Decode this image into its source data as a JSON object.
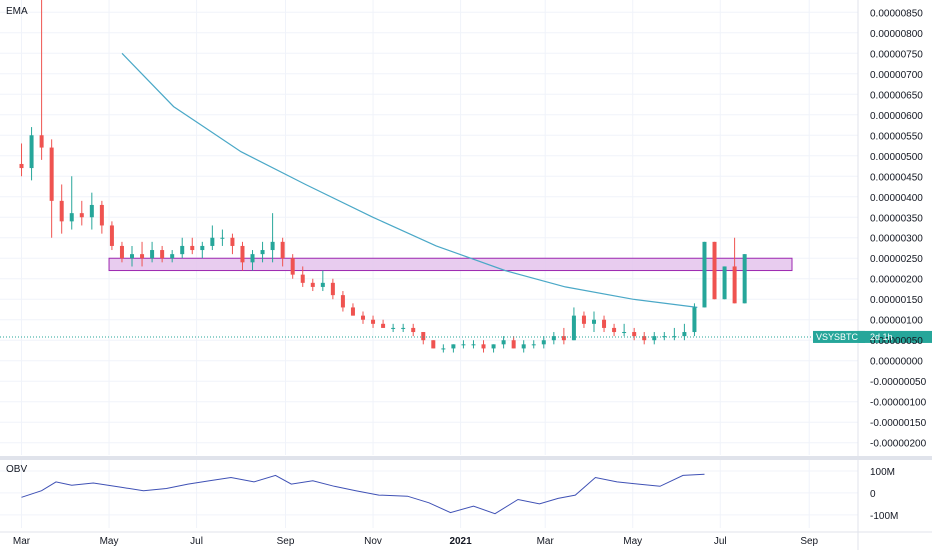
{
  "chart_data": {
    "type": "candlestick",
    "symbol": "VSYSBTC",
    "countdown": "2d 1h",
    "last_price": 5.8e-07,
    "colors": {
      "up": "#26a69a",
      "down": "#ef5350",
      "ema": "#4aa8c7",
      "zone_fill": "#e4c3ec",
      "zone_border": "#9c27b0",
      "obv": "#3f51b5",
      "label_bg": "#26a69a"
    },
    "main_pane": {
      "title": "EMA",
      "ylim": [
        -2.3e-06,
        8.8e-06
      ],
      "yticks": [
        "0.00000850",
        "0.00000800",
        "0.00000750",
        "0.00000700",
        "0.00000650",
        "0.00000600",
        "0.00000550",
        "0.00000500",
        "0.00000450",
        "0.00000400",
        "0.00000350",
        "0.00000300",
        "0.00000250",
        "0.00000200",
        "0.00000150",
        "0.00000100",
        "0.00000050",
        "0.00000000",
        "-0.00000050",
        "-0.00000100",
        "-0.00000150",
        "-0.00000200"
      ],
      "ytick_values": [
        8.5e-06,
        8e-06,
        7.5e-06,
        7e-06,
        6.5e-06,
        6e-06,
        5.5e-06,
        5e-06,
        4.5e-06,
        4e-06,
        3.5e-06,
        3e-06,
        2.5e-06,
        2e-06,
        1.5e-06,
        1e-06,
        5e-07,
        0,
        -5e-07,
        -1e-06,
        -1.5e-06,
        -2e-06
      ],
      "zone": {
        "x_start": "2020-05-01",
        "x_end": "2021-08-20",
        "y_low": 2.2e-06,
        "y_high": 2.5e-06
      },
      "ema": {
        "x": [
          "2020-05-10",
          "2020-06-15",
          "2020-08-01",
          "2020-09-15",
          "2020-11-01",
          "2020-12-15",
          "2021-02-01",
          "2021-03-15",
          "2021-05-01",
          "2021-06-15"
        ],
        "y": [
          7.5e-06,
          6.2e-06,
          5.1e-06,
          4.3e-06,
          3.5e-06,
          2.8e-06,
          2.2e-06,
          1.8e-06,
          1.5e-06,
          1.3e-06
        ]
      },
      "candles": [
        [
          "2020-03-01",
          4.8e-06,
          5.3e-06,
          4.5e-06,
          4.7e-06
        ],
        [
          "2020-03-08",
          4.7e-06,
          5.7e-06,
          4.4e-06,
          5.5e-06
        ],
        [
          "2020-03-15",
          5.5e-06,
          8.8e-06,
          4.9e-06,
          5.2e-06
        ],
        [
          "2020-03-22",
          5.2e-06,
          5.4e-06,
          3e-06,
          3.9e-06
        ],
        [
          "2020-03-29",
          3.9e-06,
          4.3e-06,
          3.1e-06,
          3.4e-06
        ],
        [
          "2020-04-05",
          3.4e-06,
          4.5e-06,
          3.2e-06,
          3.6e-06
        ],
        [
          "2020-04-12",
          3.6e-06,
          3.9e-06,
          3.3e-06,
          3.5e-06
        ],
        [
          "2020-04-19",
          3.5e-06,
          4.1e-06,
          3.2e-06,
          3.8e-06
        ],
        [
          "2020-04-26",
          3.8e-06,
          3.9e-06,
          3.1e-06,
          3.3e-06
        ],
        [
          "2020-05-03",
          3.3e-06,
          3.4e-06,
          2.7e-06,
          2.8e-06
        ],
        [
          "2020-05-10",
          2.8e-06,
          2.9e-06,
          2.4e-06,
          2.5e-06
        ],
        [
          "2020-05-17",
          2.5e-06,
          2.8e-06,
          2.3e-06,
          2.6e-06
        ],
        [
          "2020-05-24",
          2.6e-06,
          2.9e-06,
          2.3e-06,
          2.5e-06
        ],
        [
          "2020-05-31",
          2.5e-06,
          2.9e-06,
          2.4e-06,
          2.7e-06
        ],
        [
          "2020-06-07",
          2.7e-06,
          2.8e-06,
          2.4e-06,
          2.5e-06
        ],
        [
          "2020-06-14",
          2.5e-06,
          2.7e-06,
          2.4e-06,
          2.6e-06
        ],
        [
          "2020-06-21",
          2.6e-06,
          3e-06,
          2.5e-06,
          2.8e-06
        ],
        [
          "2020-06-28",
          2.8e-06,
          3e-06,
          2.6e-06,
          2.7e-06
        ],
        [
          "2020-07-05",
          2.7e-06,
          2.9e-06,
          2.5e-06,
          2.8e-06
        ],
        [
          "2020-07-12",
          2.8e-06,
          3.3e-06,
          2.7e-06,
          3e-06
        ],
        [
          "2020-07-19",
          3e-06,
          3.2e-06,
          2.8e-06,
          3e-06
        ],
        [
          "2020-07-26",
          3e-06,
          3.1e-06,
          2.6e-06,
          2.8e-06
        ],
        [
          "2020-08-02",
          2.8e-06,
          2.9e-06,
          2.2e-06,
          2.4e-06
        ],
        [
          "2020-08-09",
          2.4e-06,
          2.7e-06,
          2.2e-06,
          2.6e-06
        ],
        [
          "2020-08-16",
          2.6e-06,
          2.9e-06,
          2.4e-06,
          2.7e-06
        ],
        [
          "2020-08-23",
          2.7e-06,
          3.6e-06,
          2.4e-06,
          2.9e-06
        ],
        [
          "2020-08-30",
          2.9e-06,
          3e-06,
          2.3e-06,
          2.5e-06
        ],
        [
          "2020-09-06",
          2.5e-06,
          2.6e-06,
          2e-06,
          2.1e-06
        ],
        [
          "2020-09-13",
          2.1e-06,
          2.3e-06,
          1.8e-06,
          1.9e-06
        ],
        [
          "2020-09-20",
          1.9e-06,
          2e-06,
          1.7e-06,
          1.8e-06
        ],
        [
          "2020-09-27",
          1.8e-06,
          2.2e-06,
          1.7e-06,
          1.9e-06
        ],
        [
          "2020-10-04",
          1.9e-06,
          2e-06,
          1.5e-06,
          1.6e-06
        ],
        [
          "2020-10-11",
          1.6e-06,
          1.7e-06,
          1.2e-06,
          1.3e-06
        ],
        [
          "2020-10-18",
          1.3e-06,
          1.4e-06,
          1.1e-06,
          1.1e-06
        ],
        [
          "2020-10-25",
          1.1e-06,
          1.2e-06,
          9e-07,
          1e-06
        ],
        [
          "2020-11-01",
          1e-06,
          1.1e-06,
          8e-07,
          9e-07
        ],
        [
          "2020-11-08",
          9e-07,
          1e-06,
          8e-07,
          8e-07
        ],
        [
          "2020-11-15",
          8e-07,
          9e-07,
          7e-07,
          8e-07
        ],
        [
          "2020-11-22",
          8e-07,
          9e-07,
          7e-07,
          8e-07
        ],
        [
          "2020-11-29",
          8e-07,
          9e-07,
          6e-07,
          7e-07
        ],
        [
          "2020-12-06",
          7e-07,
          7e-07,
          4e-07,
          5e-07
        ],
        [
          "2020-12-13",
          5e-07,
          5e-07,
          3e-07,
          3e-07
        ],
        [
          "2020-12-20",
          3e-07,
          4e-07,
          2e-07,
          3e-07
        ],
        [
          "2020-12-27",
          3e-07,
          4e-07,
          2e-07,
          4e-07
        ],
        [
          "2021-01-03",
          4e-07,
          5e-07,
          3e-07,
          4e-07
        ],
        [
          "2021-01-10",
          4e-07,
          5e-07,
          3e-07,
          4e-07
        ],
        [
          "2021-01-17",
          4e-07,
          5e-07,
          2e-07,
          3e-07
        ],
        [
          "2021-01-24",
          3e-07,
          4e-07,
          2e-07,
          4e-07
        ],
        [
          "2021-01-31",
          4e-07,
          6e-07,
          3e-07,
          5e-07
        ],
        [
          "2021-02-07",
          5e-07,
          6e-07,
          3e-07,
          3e-07
        ],
        [
          "2021-02-14",
          3e-07,
          5e-07,
          2e-07,
          4e-07
        ],
        [
          "2021-02-21",
          4e-07,
          5e-07,
          3e-07,
          4e-07
        ],
        [
          "2021-02-28",
          4e-07,
          6e-07,
          3e-07,
          5e-07
        ],
        [
          "2021-03-07",
          5e-07,
          7e-07,
          4e-07,
          6e-07
        ],
        [
          "2021-03-14",
          6e-07,
          8e-07,
          4e-07,
          5e-07
        ],
        [
          "2021-03-21",
          5e-07,
          1.3e-06,
          5e-07,
          1.1e-06
        ],
        [
          "2021-03-28",
          1.1e-06,
          1.2e-06,
          8e-07,
          9e-07
        ],
        [
          "2021-04-04",
          9e-07,
          1.2e-06,
          7e-07,
          1e-06
        ],
        [
          "2021-04-11",
          1e-06,
          1.1e-06,
          7e-07,
          8e-07
        ],
        [
          "2021-04-18",
          8e-07,
          9e-07,
          6e-07,
          7e-07
        ],
        [
          "2021-04-25",
          7e-07,
          9e-07,
          6e-07,
          7e-07
        ],
        [
          "2021-05-02",
          7e-07,
          8e-07,
          5e-07,
          6e-07
        ],
        [
          "2021-05-09",
          6e-07,
          7e-07,
          4e-07,
          5e-07
        ],
        [
          "2021-05-16",
          5e-07,
          7e-07,
          4e-07,
          6e-07
        ],
        [
          "2021-05-23",
          6e-07,
          7e-07,
          5e-07,
          6e-07
        ],
        [
          "2021-05-30",
          6e-07,
          8e-07,
          5e-07,
          6e-07
        ],
        [
          "2021-06-06",
          6e-07,
          9e-07,
          5e-07,
          7e-07
        ],
        [
          "2021-06-13",
          7e-07,
          1.4e-06,
          6e-07,
          1.3e-06
        ],
        [
          "2021-06-20",
          1.3e-06,
          2.9e-06,
          1.3e-06,
          2.9e-06
        ],
        [
          "2021-06-27",
          2.9e-06,
          2.9e-06,
          1.5e-06,
          1.5e-06
        ],
        [
          "2021-07-04",
          1.5e-06,
          2.3e-06,
          1.5e-06,
          2.3e-06
        ],
        [
          "2021-07-11",
          2.3e-06,
          3e-06,
          1.4e-06,
          1.4e-06
        ],
        [
          "2021-07-18",
          1.4e-06,
          2.6e-06,
          1.4e-06,
          2.6e-06
        ]
      ]
    },
    "obv_pane": {
      "title": "OBV",
      "ylim": [
        -160,
        150
      ],
      "yticks": [
        "100M",
        "0",
        "-100M"
      ],
      "ytick_values": [
        100,
        0,
        -100
      ],
      "unit": "M",
      "x": [
        "2020-03-01",
        "2020-03-15",
        "2020-03-25",
        "2020-04-05",
        "2020-04-20",
        "2020-05-10",
        "2020-05-25",
        "2020-06-10",
        "2020-06-25",
        "2020-07-10",
        "2020-07-25",
        "2020-08-10",
        "2020-08-25",
        "2020-09-05",
        "2020-09-20",
        "2020-10-05",
        "2020-10-20",
        "2020-11-05",
        "2020-11-25",
        "2020-12-10",
        "2020-12-25",
        "2021-01-10",
        "2021-01-25",
        "2021-02-10",
        "2021-02-25",
        "2021-03-10",
        "2021-03-22",
        "2021-04-05",
        "2021-04-20",
        "2021-05-05",
        "2021-05-20",
        "2021-06-05",
        "2021-06-20"
      ],
      "y": [
        -20,
        10,
        50,
        35,
        45,
        25,
        10,
        20,
        40,
        55,
        70,
        50,
        80,
        40,
        55,
        30,
        10,
        -10,
        -15,
        -45,
        -90,
        -60,
        -95,
        -30,
        -50,
        -25,
        -10,
        70,
        50,
        40,
        30,
        80,
        85
      ]
    },
    "x_axis": {
      "ticks": [
        "Mar",
        "May",
        "Jul",
        "Sep",
        "Nov",
        "2021",
        "Mar",
        "May",
        "Jul",
        "Sep"
      ],
      "tick_dates": [
        "2020-03-01",
        "2020-05-01",
        "2020-07-01",
        "2020-09-01",
        "2020-11-01",
        "2021-01-01",
        "2021-03-01",
        "2021-05-01",
        "2021-07-01",
        "2021-09-01"
      ],
      "range": [
        "2020-02-15",
        "2021-10-05"
      ]
    }
  }
}
